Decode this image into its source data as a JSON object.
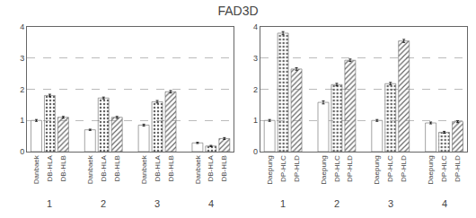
{
  "chart_data": [
    {
      "type": "bar",
      "title": "FAD3D",
      "categories": [
        "1",
        "2",
        "3",
        "4"
      ],
      "series": [
        {
          "name": "Danbaek",
          "color": "#ffffff",
          "values": [
            1.0,
            0.7,
            0.85,
            0.28
          ],
          "errors": [
            0.03,
            0.02,
            0.03,
            0.02
          ]
        },
        {
          "name": "DB-HLA",
          "color": "#d0d0d0",
          "values": [
            1.8,
            1.72,
            1.6,
            0.18
          ],
          "errors": [
            0.04,
            0.03,
            0.04,
            0.02
          ]
        },
        {
          "name": "DB-HLB",
          "color": "#909090",
          "values": [
            1.1,
            1.1,
            1.92,
            0.42
          ],
          "errors": [
            0.03,
            0.03,
            0.04,
            0.03
          ]
        }
      ],
      "ylim": [
        0,
        4
      ],
      "yticks": [
        0,
        1,
        2,
        3,
        4
      ],
      "grid": true
    },
    {
      "type": "bar",
      "categories": [
        "1",
        "2",
        "3",
        "4"
      ],
      "series": [
        {
          "name": "Daepung",
          "color": "#ffffff",
          "values": [
            1.0,
            1.58,
            1.0,
            0.92
          ],
          "errors": [
            0.03,
            0.05,
            0.03,
            0.03
          ]
        },
        {
          "name": "DP-HLC",
          "color": "#d0d0d0",
          "values": [
            3.8,
            2.15,
            2.18,
            0.62
          ],
          "errors": [
            0.05,
            0.04,
            0.04,
            0.03
          ]
        },
        {
          "name": "DP-HLD",
          "color": "#909090",
          "values": [
            2.65,
            2.93,
            3.55,
            0.96
          ],
          "errors": [
            0.04,
            0.04,
            0.05,
            0.03
          ]
        }
      ],
      "ylim": [
        0,
        4
      ],
      "yticks": [
        0,
        1,
        2,
        3,
        4
      ],
      "grid": true
    }
  ]
}
